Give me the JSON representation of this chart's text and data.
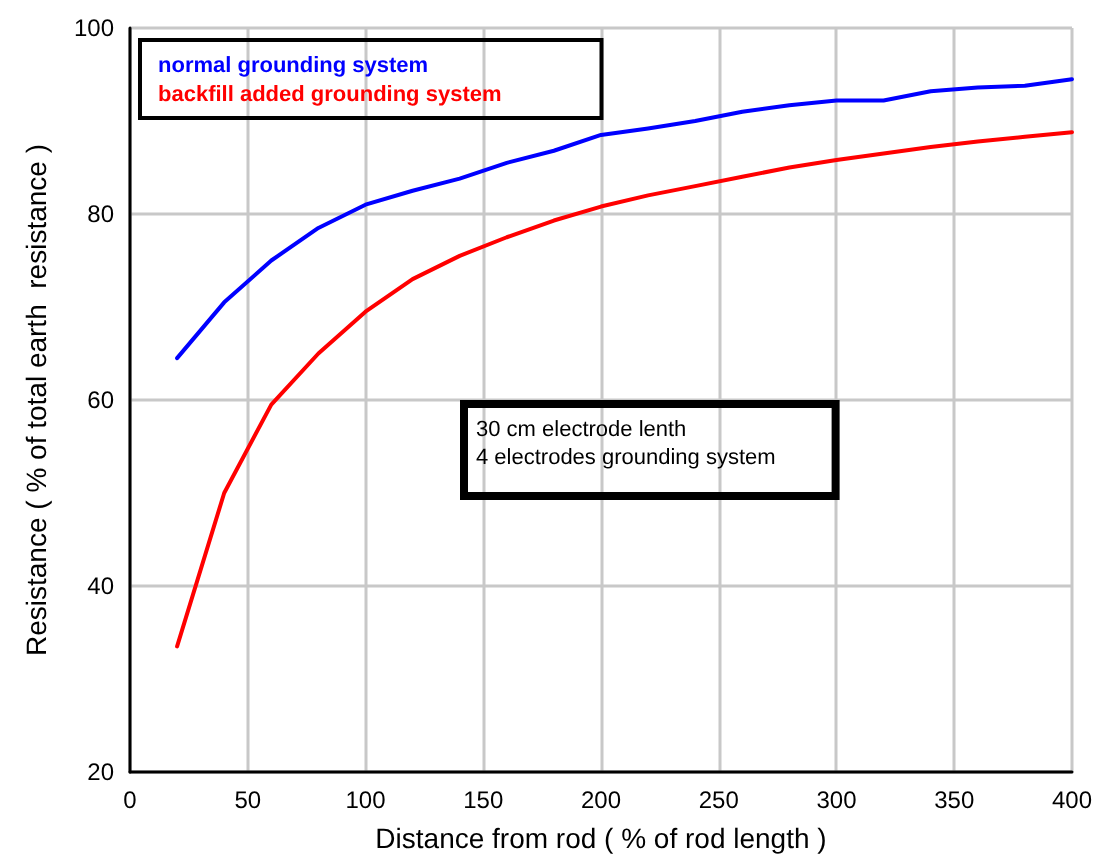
{
  "chart_data": {
    "type": "line",
    "xlabel": "Distance from rod ( % of rod length )",
    "ylabel": "Resistance ( % of total earth  resistance )",
    "x": [
      20,
      40,
      60,
      80,
      100,
      120,
      140,
      160,
      180,
      200,
      220,
      240,
      260,
      280,
      300,
      320,
      340,
      360,
      380,
      400
    ],
    "series": [
      {
        "name": "normal grounding system",
        "color": "#0000ff",
        "values": [
          64.5,
          70.5,
          75,
          78.5,
          81,
          82.5,
          83.8,
          85.5,
          86.8,
          88.5,
          89.2,
          90,
          91,
          91.7,
          92.2,
          92.2,
          93.2,
          93.6,
          93.8,
          94.5
        ]
      },
      {
        "name": "backfill added grounding system",
        "color": "#ff0000",
        "values": [
          33.5,
          50,
          59.5,
          65,
          69.5,
          73,
          75.5,
          77.5,
          79.3,
          80.8,
          82,
          83,
          84,
          85,
          85.8,
          86.5,
          87.2,
          87.8,
          88.3,
          88.8
        ]
      }
    ],
    "xlim": [
      0,
      400
    ],
    "xticks": [
      0,
      50,
      100,
      150,
      200,
      250,
      300,
      350,
      400
    ],
    "ylim": [
      20,
      100
    ],
    "yticks": [
      20,
      40,
      60,
      80,
      100
    ],
    "grid": true,
    "legend": "top left",
    "marker": "none",
    "line_style": "solid",
    "annotations": [
      "30 cm electrode lenth\n4 electrodes grounding system"
    ]
  }
}
